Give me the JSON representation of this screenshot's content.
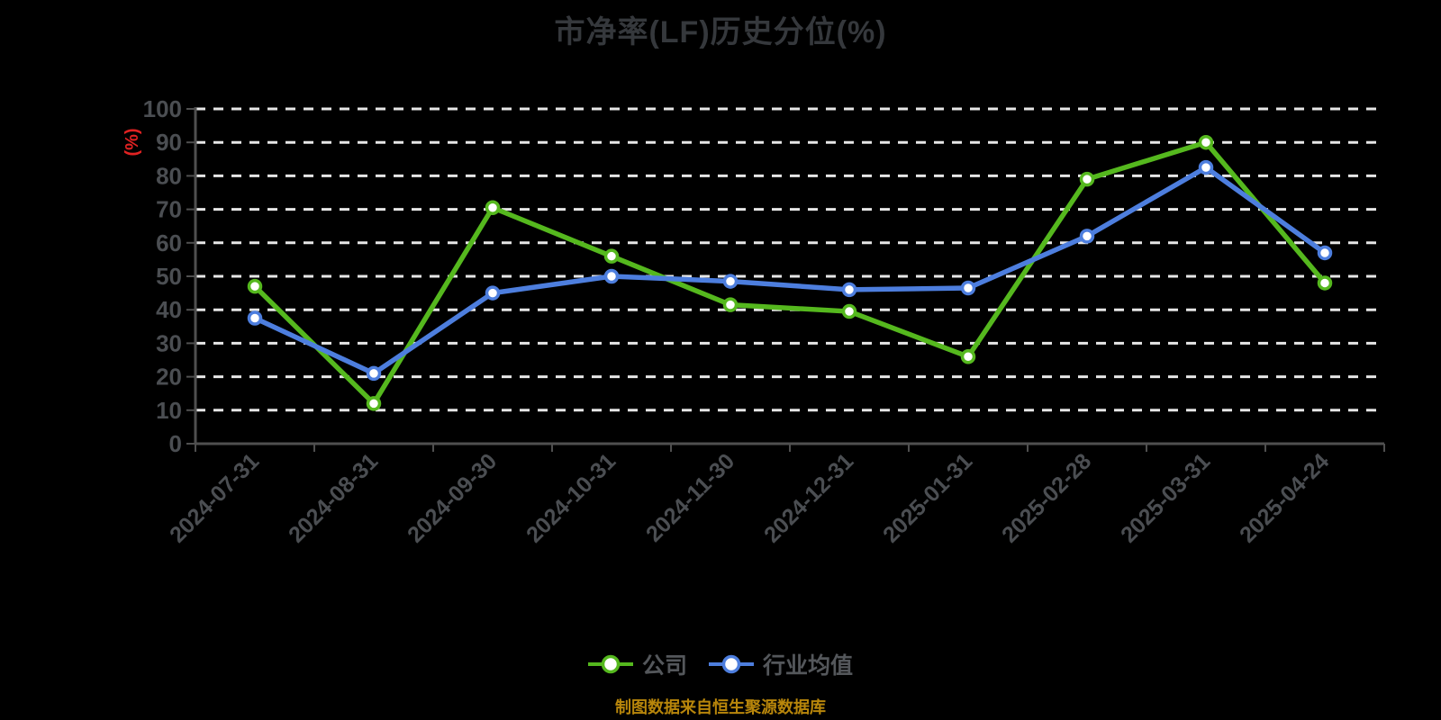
{
  "chart_data": {
    "type": "line",
    "title": "市净率(LF)历史分位(%)",
    "ylabel": "(%)",
    "xlabel": "",
    "categories": [
      "2024-07-31",
      "2024-08-31",
      "2024-09-30",
      "2024-10-31",
      "2024-11-30",
      "2024-12-31",
      "2025-01-31",
      "2025-02-28",
      "2025-03-31",
      "2025-04-24"
    ],
    "series": [
      {
        "name": "公司",
        "color": "#55b81e",
        "values": [
          47,
          12,
          70.5,
          56,
          41.5,
          39.5,
          26,
          79,
          90,
          48
        ]
      },
      {
        "name": "行业均值",
        "color": "#4d7ede",
        "values": [
          37.5,
          21,
          45,
          50,
          48.5,
          46,
          46.5,
          62,
          82.5,
          57
        ]
      }
    ],
    "ylim": [
      0,
      100
    ],
    "ytick_step": 10,
    "yticks": [
      0,
      10,
      20,
      30,
      40,
      50,
      60,
      70,
      80,
      90,
      100
    ],
    "grid": "horizontal-dashed",
    "legend_position": "bottom",
    "source_note": "制图数据来自恒生聚源数据库"
  },
  "colors": {
    "background": "#000000",
    "grid": "#e6e6e6",
    "axis": "#4f4f4f",
    "tick_label": "#4b4e52",
    "title": "#35383c",
    "ylabel_red": "#e02222",
    "legend_text": "#54575b",
    "source_note": "#b8860b",
    "marker_fill": "#ffffff"
  }
}
